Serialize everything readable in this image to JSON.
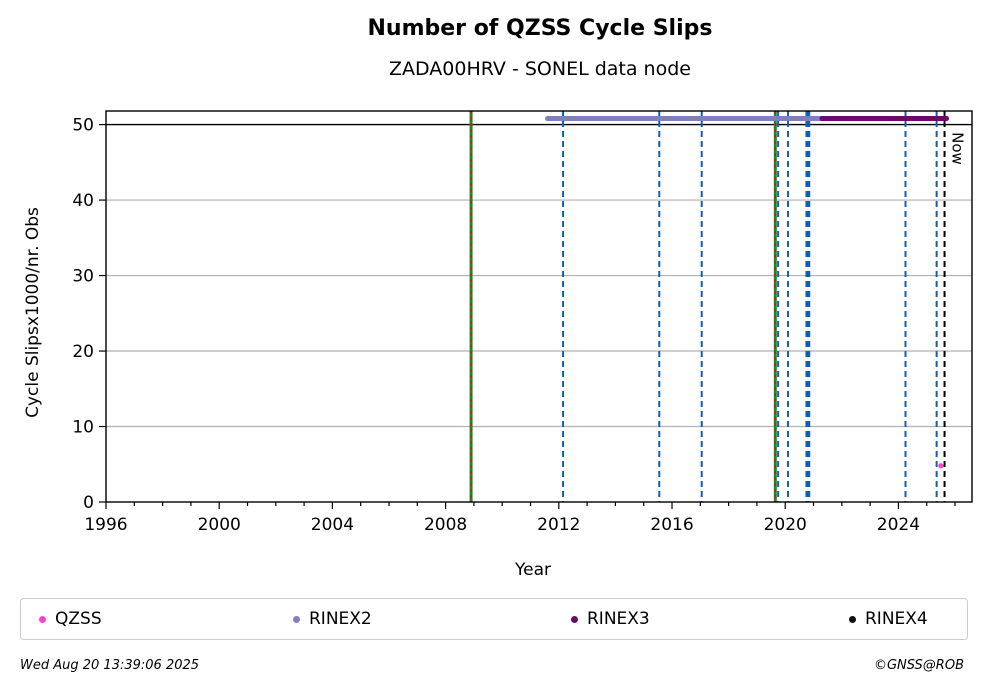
{
  "chart_data": {
    "type": "scatter",
    "title": "Number of QZSS Cycle Slips",
    "subtitle": "ZADA00HRV - SONEL data node",
    "xlabel": "Year",
    "ylabel": "Cycle Slipsx1000/nr. Obs",
    "xlim": [
      1996,
      2026.6
    ],
    "ylim": [
      0,
      51.8
    ],
    "x_ticks": [
      1996,
      2000,
      2004,
      2008,
      2012,
      2016,
      2020,
      2024
    ],
    "y_ticks": [
      0,
      10,
      20,
      30,
      40,
      50
    ],
    "grid": "horizontal",
    "reference_line_y": 50,
    "now_label": "Now",
    "now_x": 2025.63,
    "series": [
      {
        "name": "QZSS",
        "color": "#ff44cc",
        "points": [
          [
            2025.5,
            4.8
          ]
        ]
      }
    ],
    "rinex_bars": [
      {
        "name": "RINEX2",
        "color": "#8080c0",
        "y": 50.8,
        "start": 2011.6,
        "end": 2021.3
      },
      {
        "name": "RINEX3",
        "color": "#6a0a6a",
        "y": 50.8,
        "start": 2021.3,
        "end": 2025.7
      },
      {
        "name": "RINEX4",
        "color": "#111111",
        "y": 50.8,
        "start": null,
        "end": null
      }
    ],
    "event_lines": [
      {
        "x": 2008.9,
        "style": "green-red"
      },
      {
        "x": 2019.65,
        "style": "green-red"
      },
      {
        "x": 2012.15,
        "style": "blue"
      },
      {
        "x": 2015.55,
        "style": "blue"
      },
      {
        "x": 2017.05,
        "style": "blue"
      },
      {
        "x": 2019.75,
        "style": "blue"
      },
      {
        "x": 2020.1,
        "style": "blue"
      },
      {
        "x": 2020.75,
        "style": "blue"
      },
      {
        "x": 2020.8,
        "style": "blue"
      },
      {
        "x": 2020.85,
        "style": "blue"
      },
      {
        "x": 2024.25,
        "style": "blue"
      },
      {
        "x": 2025.35,
        "style": "blue"
      }
    ],
    "legend_position": "bottom"
  },
  "legend": [
    "QZSS",
    "RINEX2",
    "RINEX3",
    "RINEX4"
  ],
  "footer": {
    "timestamp": "Wed Aug 20 13:39:06 2025",
    "copyright": "©GNSS@ROB"
  }
}
